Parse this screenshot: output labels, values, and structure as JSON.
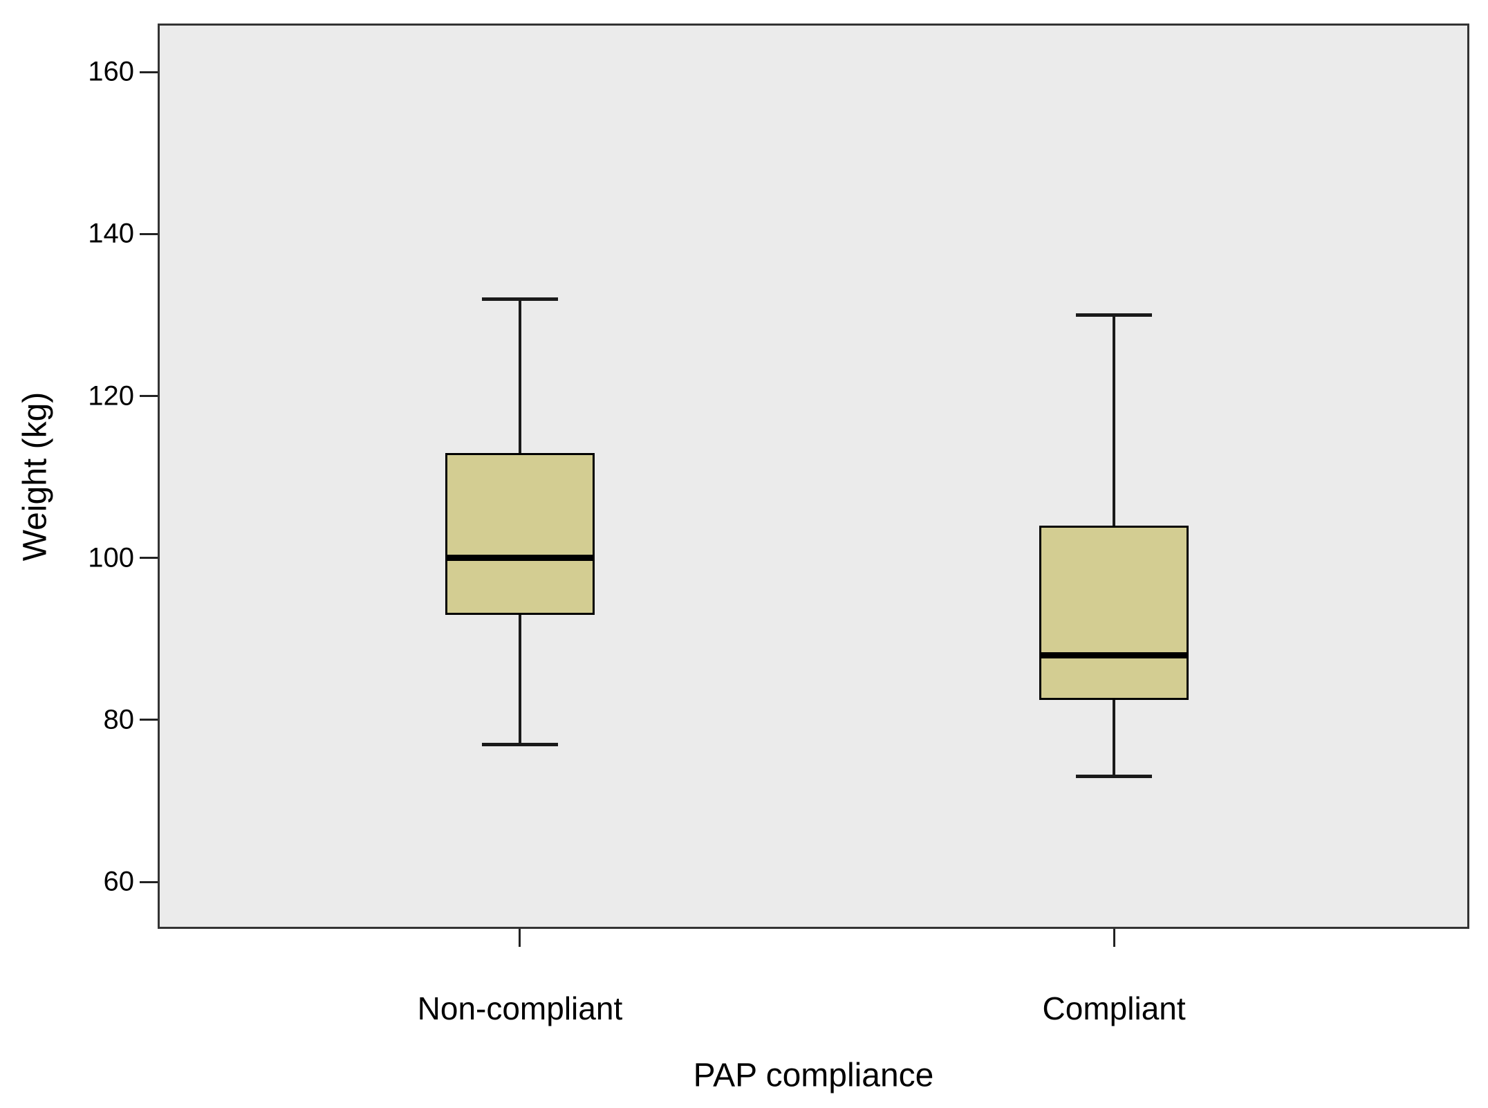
{
  "chart_data": {
    "type": "boxplot",
    "title": "",
    "xlabel": "PAP compliance",
    "ylabel": "Weight (kg)",
    "categories": [
      "Non-compliant",
      "Compliant"
    ],
    "series": [
      {
        "name": "Non-compliant",
        "min": 77,
        "q1": 93,
        "median": 100,
        "q3": 113,
        "max": 132
      },
      {
        "name": "Compliant",
        "min": 73,
        "q1": 82.5,
        "median": 88,
        "q3": 104,
        "max": 130
      }
    ],
    "yticks": [
      60,
      80,
      100,
      120,
      140,
      160
    ],
    "ylim": [
      54.2,
      166
    ],
    "grid": false,
    "legend": false,
    "colors": {
      "box_fill": "#d3cd92",
      "box_border": "#000000",
      "median": "#000000",
      "whisker": "#1a1a1a",
      "plot_bg": "#ebebeb",
      "frame": "#333333",
      "text": "#000000",
      "page_bg": "#ffffff"
    }
  }
}
